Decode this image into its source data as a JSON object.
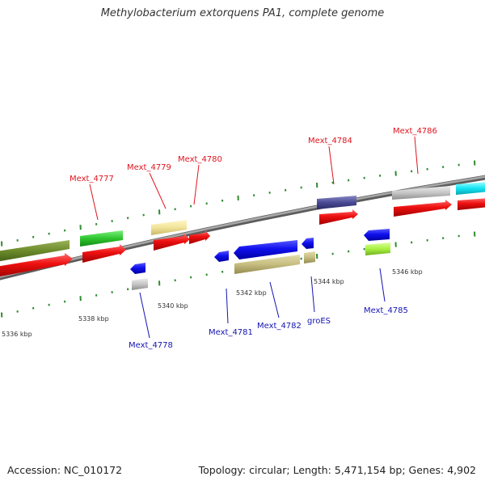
{
  "title": "Methylobacterium extorquens PA1, complete genome",
  "footer": {
    "accession": "Accession: NC_010172",
    "stats": "Topology: circular; Length: 5,471,154 bp; Genes: 4,902"
  },
  "colors": {
    "forward_label": "#e0141e",
    "reverse_label": "#1414b4",
    "backbone": "#8a8a8a",
    "tick": "#2e8b2e"
  },
  "position_labels": [
    "5336 kbp",
    "5338 kbp",
    "5340 kbp",
    "5342 kbp",
    "5344 kbp",
    "5346 kbp"
  ],
  "gene_labels": {
    "forward": [
      "Mext_4777",
      "Mext_4779",
      "Mext_4780",
      "Mext_4784",
      "Mext_4786"
    ],
    "reverse": [
      "Mext_4778",
      "Mext_4781",
      "Mext_4782",
      "groES",
      "Mext_4785"
    ]
  }
}
